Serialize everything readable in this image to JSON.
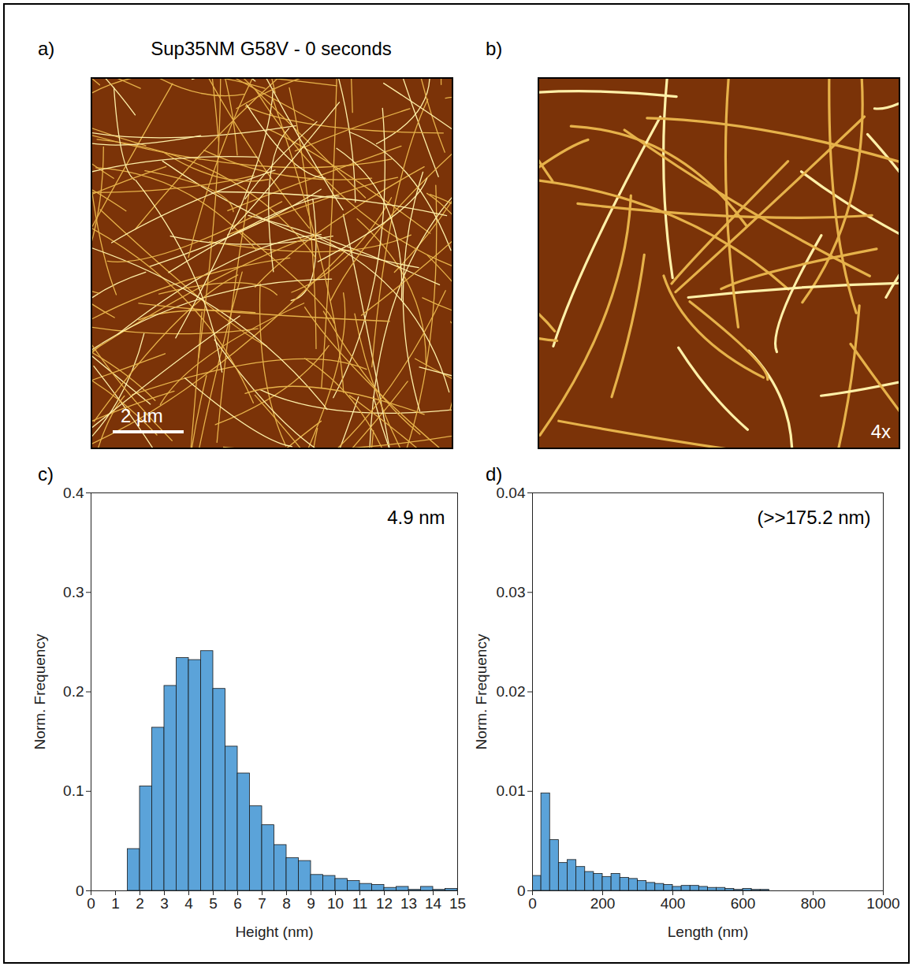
{
  "images": [
    {
      "letter": "a)",
      "title": "Sup35NM G58V - 0 seconds",
      "scale_bar": "2 µm"
    },
    {
      "letter": "b)",
      "magnification": "4x"
    }
  ],
  "chart_data": [
    {
      "letter": "c)",
      "type": "histogram",
      "x_label": "Height (nm)",
      "y_label": "Norm. Frequency",
      "annotation": "4.9 nm",
      "bins": [
        1.5,
        2,
        2.5,
        3,
        3.5,
        4,
        4.5,
        5,
        5.5,
        6,
        6.5,
        7,
        7.5,
        8,
        8.5,
        9,
        9.5,
        10,
        10.5,
        11,
        11.5,
        12,
        12.5,
        13,
        13.5,
        14,
        14.5,
        15
      ],
      "values": [
        0.042,
        0.105,
        0.164,
        0.206,
        0.234,
        0.232,
        0.241,
        0.203,
        0.145,
        0.118,
        0.085,
        0.066,
        0.046,
        0.033,
        0.03,
        0.016,
        0.015,
        0.012,
        0.01,
        0.007,
        0.006,
        0.003,
        0.004,
        0.001,
        0.004,
        0.001,
        0.002
      ],
      "color": "#5ba3d9",
      "xlim": [
        0,
        15
      ],
      "xticks": [
        0,
        1,
        2,
        3,
        4,
        5,
        6,
        7,
        8,
        9,
        10,
        11,
        12,
        13,
        14,
        15
      ],
      "ylim": [
        0,
        0.4
      ],
      "yticks": [
        0,
        0.1,
        0.2,
        0.3,
        0.4
      ],
      "grid": false
    },
    {
      "letter": "d)",
      "type": "histogram",
      "x_label": "Length (nm)",
      "y_label": "Norm. Frequency",
      "annotation": "(>>175.2 nm)",
      "bins": [
        0,
        25,
        50,
        75,
        100,
        125,
        150,
        175,
        200,
        225,
        250,
        275,
        300,
        325,
        350,
        375,
        400,
        425,
        450,
        475,
        500,
        525,
        550,
        575,
        600,
        625,
        650,
        675
      ],
      "values": [
        0.0015,
        0.0098,
        0.0051,
        0.0028,
        0.0031,
        0.0024,
        0.0019,
        0.0017,
        0.0014,
        0.0017,
        0.0013,
        0.0012,
        0.001,
        0.0008,
        0.0007,
        0.0006,
        0.0004,
        0.0005,
        0.0005,
        0.0004,
        0.0003,
        0.0003,
        0.0002,
        0.0001,
        0.0002,
        0.0001,
        0.0001
      ],
      "color": "#5ba3d9",
      "xlim": [
        0,
        1000
      ],
      "xticks": [
        0,
        200,
        400,
        600,
        800,
        1000
      ],
      "ylim": [
        0,
        0.04
      ],
      "yticks": [
        0,
        0.01,
        0.02,
        0.03,
        0.04
      ],
      "grid": false
    }
  ]
}
